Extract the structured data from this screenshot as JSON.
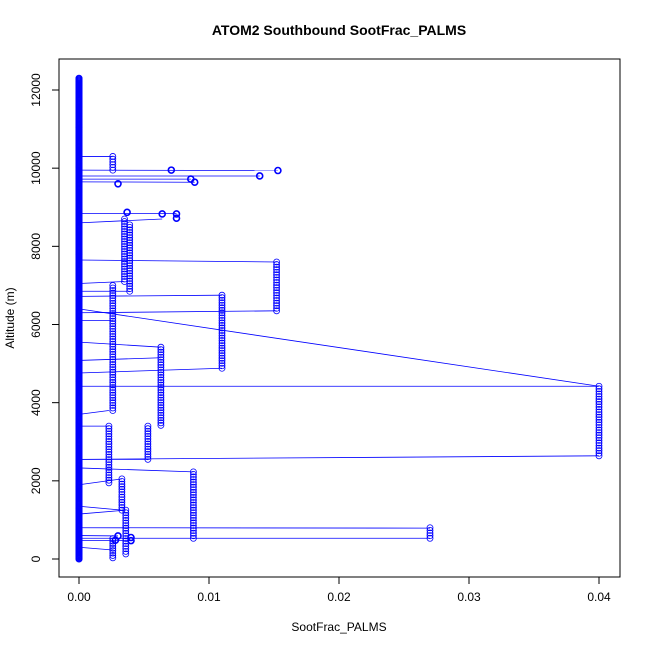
{
  "chart_data": {
    "type": "scatter",
    "title": "ATOM2 Southbound SootFrac_PALMS",
    "xlabel": "SootFrac_PALMS",
    "ylabel": "Altitude (m)",
    "xlim": [
      0,
      0.04
    ],
    "ylim": [
      0,
      12300
    ],
    "x_ticks": [
      0.0,
      0.01,
      0.02,
      0.03,
      0.04
    ],
    "x_tick_labels": [
      "0.00",
      "0.01",
      "0.02",
      "0.03",
      "0.04"
    ],
    "y_ticks": [
      0,
      2000,
      4000,
      6000,
      8000,
      10000,
      12000
    ],
    "y_tick_labels": [
      "0",
      "2000",
      "4000",
      "6000",
      "8000",
      "10000",
      "12000"
    ],
    "series_color": "#0000ff",
    "baseline_x": 0.0,
    "baseline_altitude_range": [
      0,
      12300
    ],
    "plateaus": [
      {
        "x": 0.04,
        "y_min": 2640,
        "y_max": 4420
      },
      {
        "x": 0.0152,
        "y_min": 6350,
        "y_max": 7600
      },
      {
        "x": 0.011,
        "y_min": 4880,
        "y_max": 6750
      },
      {
        "x": 0.0088,
        "y_min": 530,
        "y_max": 2230
      },
      {
        "x": 0.0063,
        "y_min": 3420,
        "y_max": 5420
      },
      {
        "x": 0.0053,
        "y_min": 2550,
        "y_max": 3400
      },
      {
        "x": 0.0039,
        "y_min": 6850,
        "y_max": 8550
      },
      {
        "x": 0.0035,
        "y_min": 7100,
        "y_max": 8700
      },
      {
        "x": 0.0026,
        "y_min": 3800,
        "y_max": 7000
      },
      {
        "x": 0.0023,
        "y_min": 1950,
        "y_max": 3400
      },
      {
        "x": 0.0033,
        "y_min": 1250,
        "y_max": 2050
      },
      {
        "x": 0.0036,
        "y_min": 130,
        "y_max": 1250
      },
      {
        "x": 0.0026,
        "y_min": 30,
        "y_max": 520
      },
      {
        "x": 0.0026,
        "y_min": 9950,
        "y_max": 10300
      },
      {
        "x": 0.027,
        "y_min": 530,
        "y_max": 800
      }
    ],
    "isolated_points": [
      {
        "x": 0.0153,
        "y": 9940
      },
      {
        "x": 0.0139,
        "y": 9800
      },
      {
        "x": 0.0086,
        "y": 9720
      },
      {
        "x": 0.0089,
        "y": 9640
      },
      {
        "x": 0.0071,
        "y": 9950
      },
      {
        "x": 0.003,
        "y": 9600
      },
      {
        "x": 0.0037,
        "y": 8870
      },
      {
        "x": 0.0064,
        "y": 8830
      },
      {
        "x": 0.0075,
        "y": 8830
      },
      {
        "x": 0.0075,
        "y": 8720
      },
      {
        "x": 0.004,
        "y": 550
      },
      {
        "x": 0.004,
        "y": 470
      },
      {
        "x": 0.003,
        "y": 590
      },
      {
        "x": 0.0028,
        "y": 480
      }
    ],
    "connector_segments": [
      {
        "from": [
          0.0,
          4420
        ],
        "to": [
          0.04,
          4420
        ]
      },
      {
        "from": [
          0.0,
          6400
        ],
        "to": [
          0.04,
          4420
        ]
      },
      {
        "from": [
          0.0,
          2550
        ],
        "to": [
          0.04,
          2640
        ]
      },
      {
        "from": [
          0.0,
          6300
        ],
        "to": [
          0.0152,
          6350
        ]
      },
      {
        "from": [
          0.0,
          7650
        ],
        "to": [
          0.0152,
          7600
        ]
      },
      {
        "from": [
          0.0,
          9950
        ],
        "to": [
          0.0153,
          9940
        ]
      },
      {
        "from": [
          0.0,
          9800
        ],
        "to": [
          0.0139,
          9800
        ]
      },
      {
        "from": [
          0.0,
          9720
        ],
        "to": [
          0.0086,
          9720
        ]
      },
      {
        "from": [
          0.0,
          9650
        ],
        "to": [
          0.0089,
          9640
        ]
      },
      {
        "from": [
          0.0,
          800
        ],
        "to": [
          0.027,
          790
        ]
      },
      {
        "from": [
          0.0,
          530
        ],
        "to": [
          0.027,
          530
        ]
      },
      {
        "from": [
          0.0,
          6720
        ],
        "to": [
          0.011,
          6750
        ]
      },
      {
        "from": [
          0.0,
          4760
        ],
        "to": [
          0.011,
          4880
        ]
      },
      {
        "from": [
          0.0,
          2330
        ],
        "to": [
          0.0088,
          2230
        ]
      },
      {
        "from": [
          0.0,
          8840
        ],
        "to": [
          0.0075,
          8840
        ]
      },
      {
        "from": [
          0.0,
          5550
        ],
        "to": [
          0.0063,
          5420
        ]
      },
      {
        "from": [
          0.0,
          5080
        ],
        "to": [
          0.0063,
          5150
        ]
      },
      {
        "from": [
          0.0,
          6850
        ],
        "to": [
          0.0039,
          6850
        ]
      },
      {
        "from": [
          0.0,
          7050
        ],
        "to": [
          0.0035,
          7100
        ]
      },
      {
        "from": [
          0.0,
          10300
        ],
        "to": [
          0.0026,
          10300
        ]
      },
      {
        "from": [
          0.0,
          6100
        ],
        "to": [
          0.0026,
          6100
        ]
      },
      {
        "from": [
          0.0,
          3700
        ],
        "to": [
          0.0023,
          3800
        ]
      },
      {
        "from": [
          0.0,
          3400
        ],
        "to": [
          0.0023,
          3400
        ]
      },
      {
        "from": [
          0.0,
          2550
        ],
        "to": [
          0.0053,
          2550
        ]
      },
      {
        "from": [
          0.0,
          1900
        ],
        "to": [
          0.0033,
          2050
        ]
      },
      {
        "from": [
          0.0,
          1350
        ],
        "to": [
          0.0033,
          1250
        ]
      },
      {
        "from": [
          0.0,
          1150
        ],
        "to": [
          0.0036,
          1250
        ]
      },
      {
        "from": [
          0.0,
          470
        ],
        "to": [
          0.004,
          470
        ]
      },
      {
        "from": [
          0.0,
          600
        ],
        "to": [
          0.003,
          590
        ]
      },
      {
        "from": [
          0.0,
          300
        ],
        "to": [
          0.0026,
          230
        ]
      },
      {
        "from": [
          0.0,
          8600
        ],
        "to": [
          0.0064,
          8700
        ]
      }
    ]
  }
}
